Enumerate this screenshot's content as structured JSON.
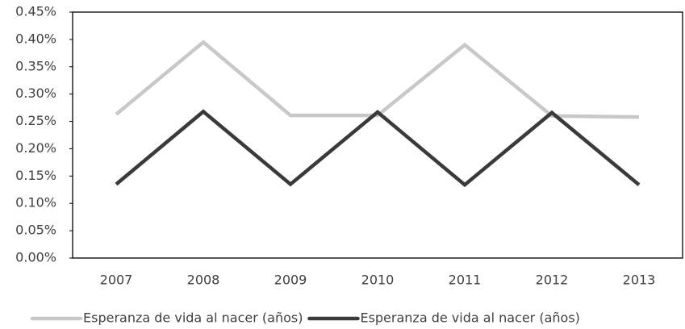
{
  "chart_data": {
    "type": "line",
    "categories": [
      "2007",
      "2008",
      "2009",
      "2010",
      "2011",
      "2012",
      "2013"
    ],
    "series": [
      {
        "name": "Esperanza de vida al nacer (años)",
        "color": "#c8c8c8",
        "values": [
          0.263,
          0.395,
          0.261,
          0.261,
          0.39,
          0.26,
          0.258
        ]
      },
      {
        "name": "Esperanza de vida al nacer (años)",
        "color": "#3a3a3a",
        "values": [
          0.135,
          0.268,
          0.135,
          0.267,
          0.134,
          0.266,
          0.134
        ]
      }
    ],
    "ylim": [
      0,
      0.45
    ],
    "yticks": [
      {
        "value": 0,
        "label": "0.00%"
      },
      {
        "value": 0.05,
        "label": "0.05%"
      },
      {
        "value": 0.1,
        "label": "0.10%"
      },
      {
        "value": 0.15,
        "label": "0.15%"
      },
      {
        "value": 0.2,
        "label": "0.20%"
      },
      {
        "value": 0.25,
        "label": "0.25%"
      },
      {
        "value": 0.3,
        "label": "0.30%"
      },
      {
        "value": 0.35,
        "label": "0.35%"
      },
      {
        "value": 0.4,
        "label": "0.40%"
      },
      {
        "value": 0.45,
        "label": "0.45%"
      }
    ],
    "legend": "bottom"
  }
}
